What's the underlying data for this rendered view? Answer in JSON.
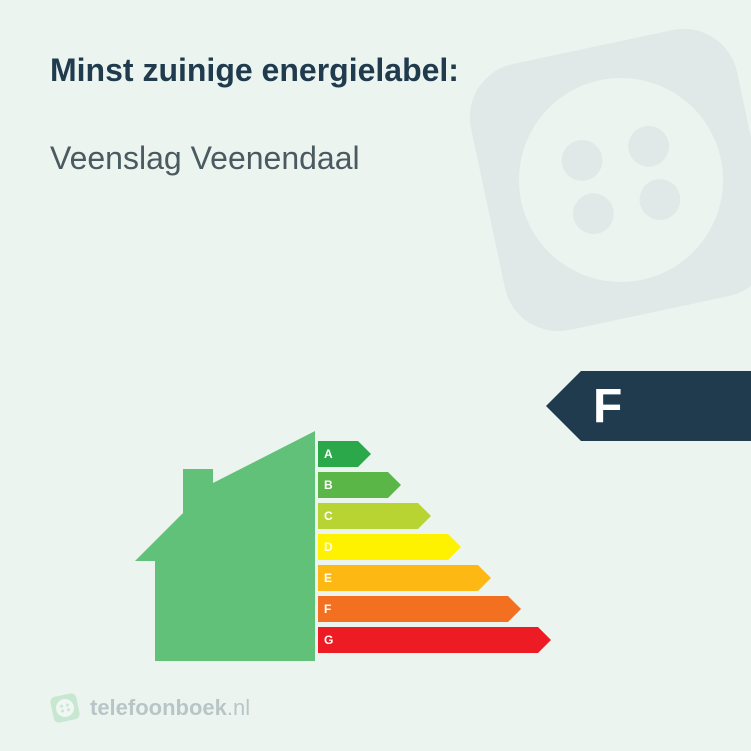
{
  "background_color": "#ecf4f0",
  "title": "Minst zuinige energielabel:",
  "title_color": "#1f3b4d",
  "subtitle": "Veenslag Veenendaal",
  "subtitle_color": "#4a5a60",
  "house_color": "#62c178",
  "energy_bars": {
    "base_width": 40,
    "width_step": 30,
    "bars": [
      {
        "label": "A",
        "color": "#2aa84a"
      },
      {
        "label": "B",
        "color": "#5bb648"
      },
      {
        "label": "C",
        "color": "#b8d433"
      },
      {
        "label": "D",
        "color": "#fff200"
      },
      {
        "label": "E",
        "color": "#fdb813"
      },
      {
        "label": "F",
        "color": "#f37021"
      },
      {
        "label": "G",
        "color": "#ed1c24"
      }
    ]
  },
  "rating": {
    "value": "F",
    "bg_color": "#1f3b4d",
    "body_width": 170
  },
  "footer": {
    "brand": "telefoonboek",
    "tld": ".nl",
    "text_color": "#1f3b4d",
    "logo_bg": "#62c178",
    "logo_fg": "#ffffff"
  }
}
